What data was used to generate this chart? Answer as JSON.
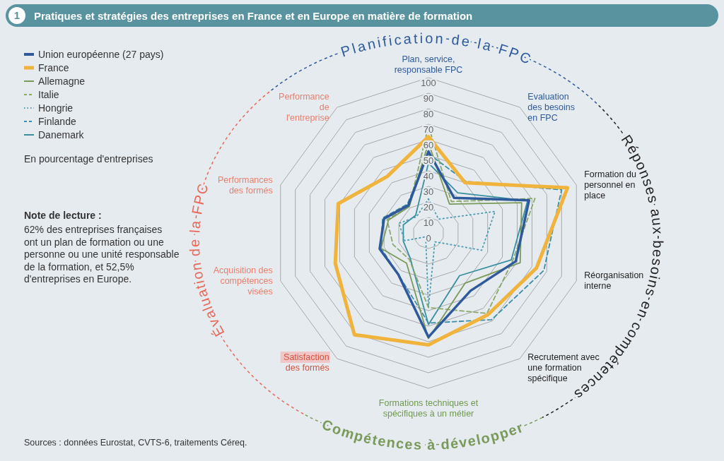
{
  "chart_data": {
    "type": "radar",
    "title": "Pratiques et stratégies des entreprises en France et en Europe en matière de formation",
    "categories": [
      "Plan, service, responsable FPC",
      "Evaluation des besoins en FPC",
      "Formation du personnel en place",
      "Réorganisation interne",
      "Recrutement avec une formation spécifique",
      "Formations techniques et spécifiques à un métier",
      "Satisfaction des formés",
      "Acquisition des compétences visées",
      "Performances des formés",
      "Performance de l'entreprise"
    ],
    "ylim": [
      0,
      100
    ],
    "yticks": [
      0,
      10,
      20,
      30,
      40,
      50,
      60,
      70,
      80,
      90,
      100
    ],
    "grid": true,
    "legend": "top left",
    "series": [
      {
        "name": "Union européenne (27 pays)",
        "color": "#2e5a9c",
        "line_style": "solid",
        "values": [
          52.5,
          28,
          68,
          59,
          46,
          67,
          33,
          33,
          30,
          22
        ]
      },
      {
        "name": "France",
        "color": "#f0b43c",
        "line_style": "solid",
        "values": [
          62,
          40,
          94,
          73,
          65,
          72,
          81,
          63,
          61,
          45
        ]
      },
      {
        "name": "Allemagne",
        "color": "#7a9a5a",
        "line_style": "solid",
        "values": [
          58,
          23,
          63,
          62,
          40,
          68,
          24,
          32,
          27,
          21
        ]
      },
      {
        "name": "Italie",
        "color": "#8aa86a",
        "line_style": "dashed",
        "values": [
          69,
          25,
          72,
          57,
          64,
          48,
          21,
          24,
          28,
          21
        ]
      },
      {
        "name": "Hongrie",
        "color": "#4a9ab0",
        "line_style": "dotted",
        "values": [
          22,
          11,
          45,
          36,
          7,
          48,
          3,
          16,
          20,
          13
        ]
      },
      {
        "name": "Finlande",
        "color": "#3a8fa8",
        "line_style": "dashed",
        "values": [
          51,
          41,
          90,
          78,
          69,
          58,
          33,
          32,
          31,
          23
        ]
      },
      {
        "name": "Danemark",
        "color": "#3a8f9f",
        "line_style": "solid",
        "values": [
          45,
          32,
          67,
          56,
          34,
          59,
          20,
          17,
          17,
          14
        ]
      }
    ],
    "annotations": [
      "Planification de la FPC",
      "Réponses aux besoins en compétences",
      "Compétences à développer",
      "Évaluation de la FPC",
      "En pourcentage d'entreprises",
      "Note de lecture :",
      "62% des entreprises françaises ont un plan de formation ou une personne ou une unité responsable de la formation, et 52,5% d'entreprises en Europe.",
      "Sources : données Eurostat, CVTS-6, traitements Céreq.",
      "1"
    ]
  }
}
